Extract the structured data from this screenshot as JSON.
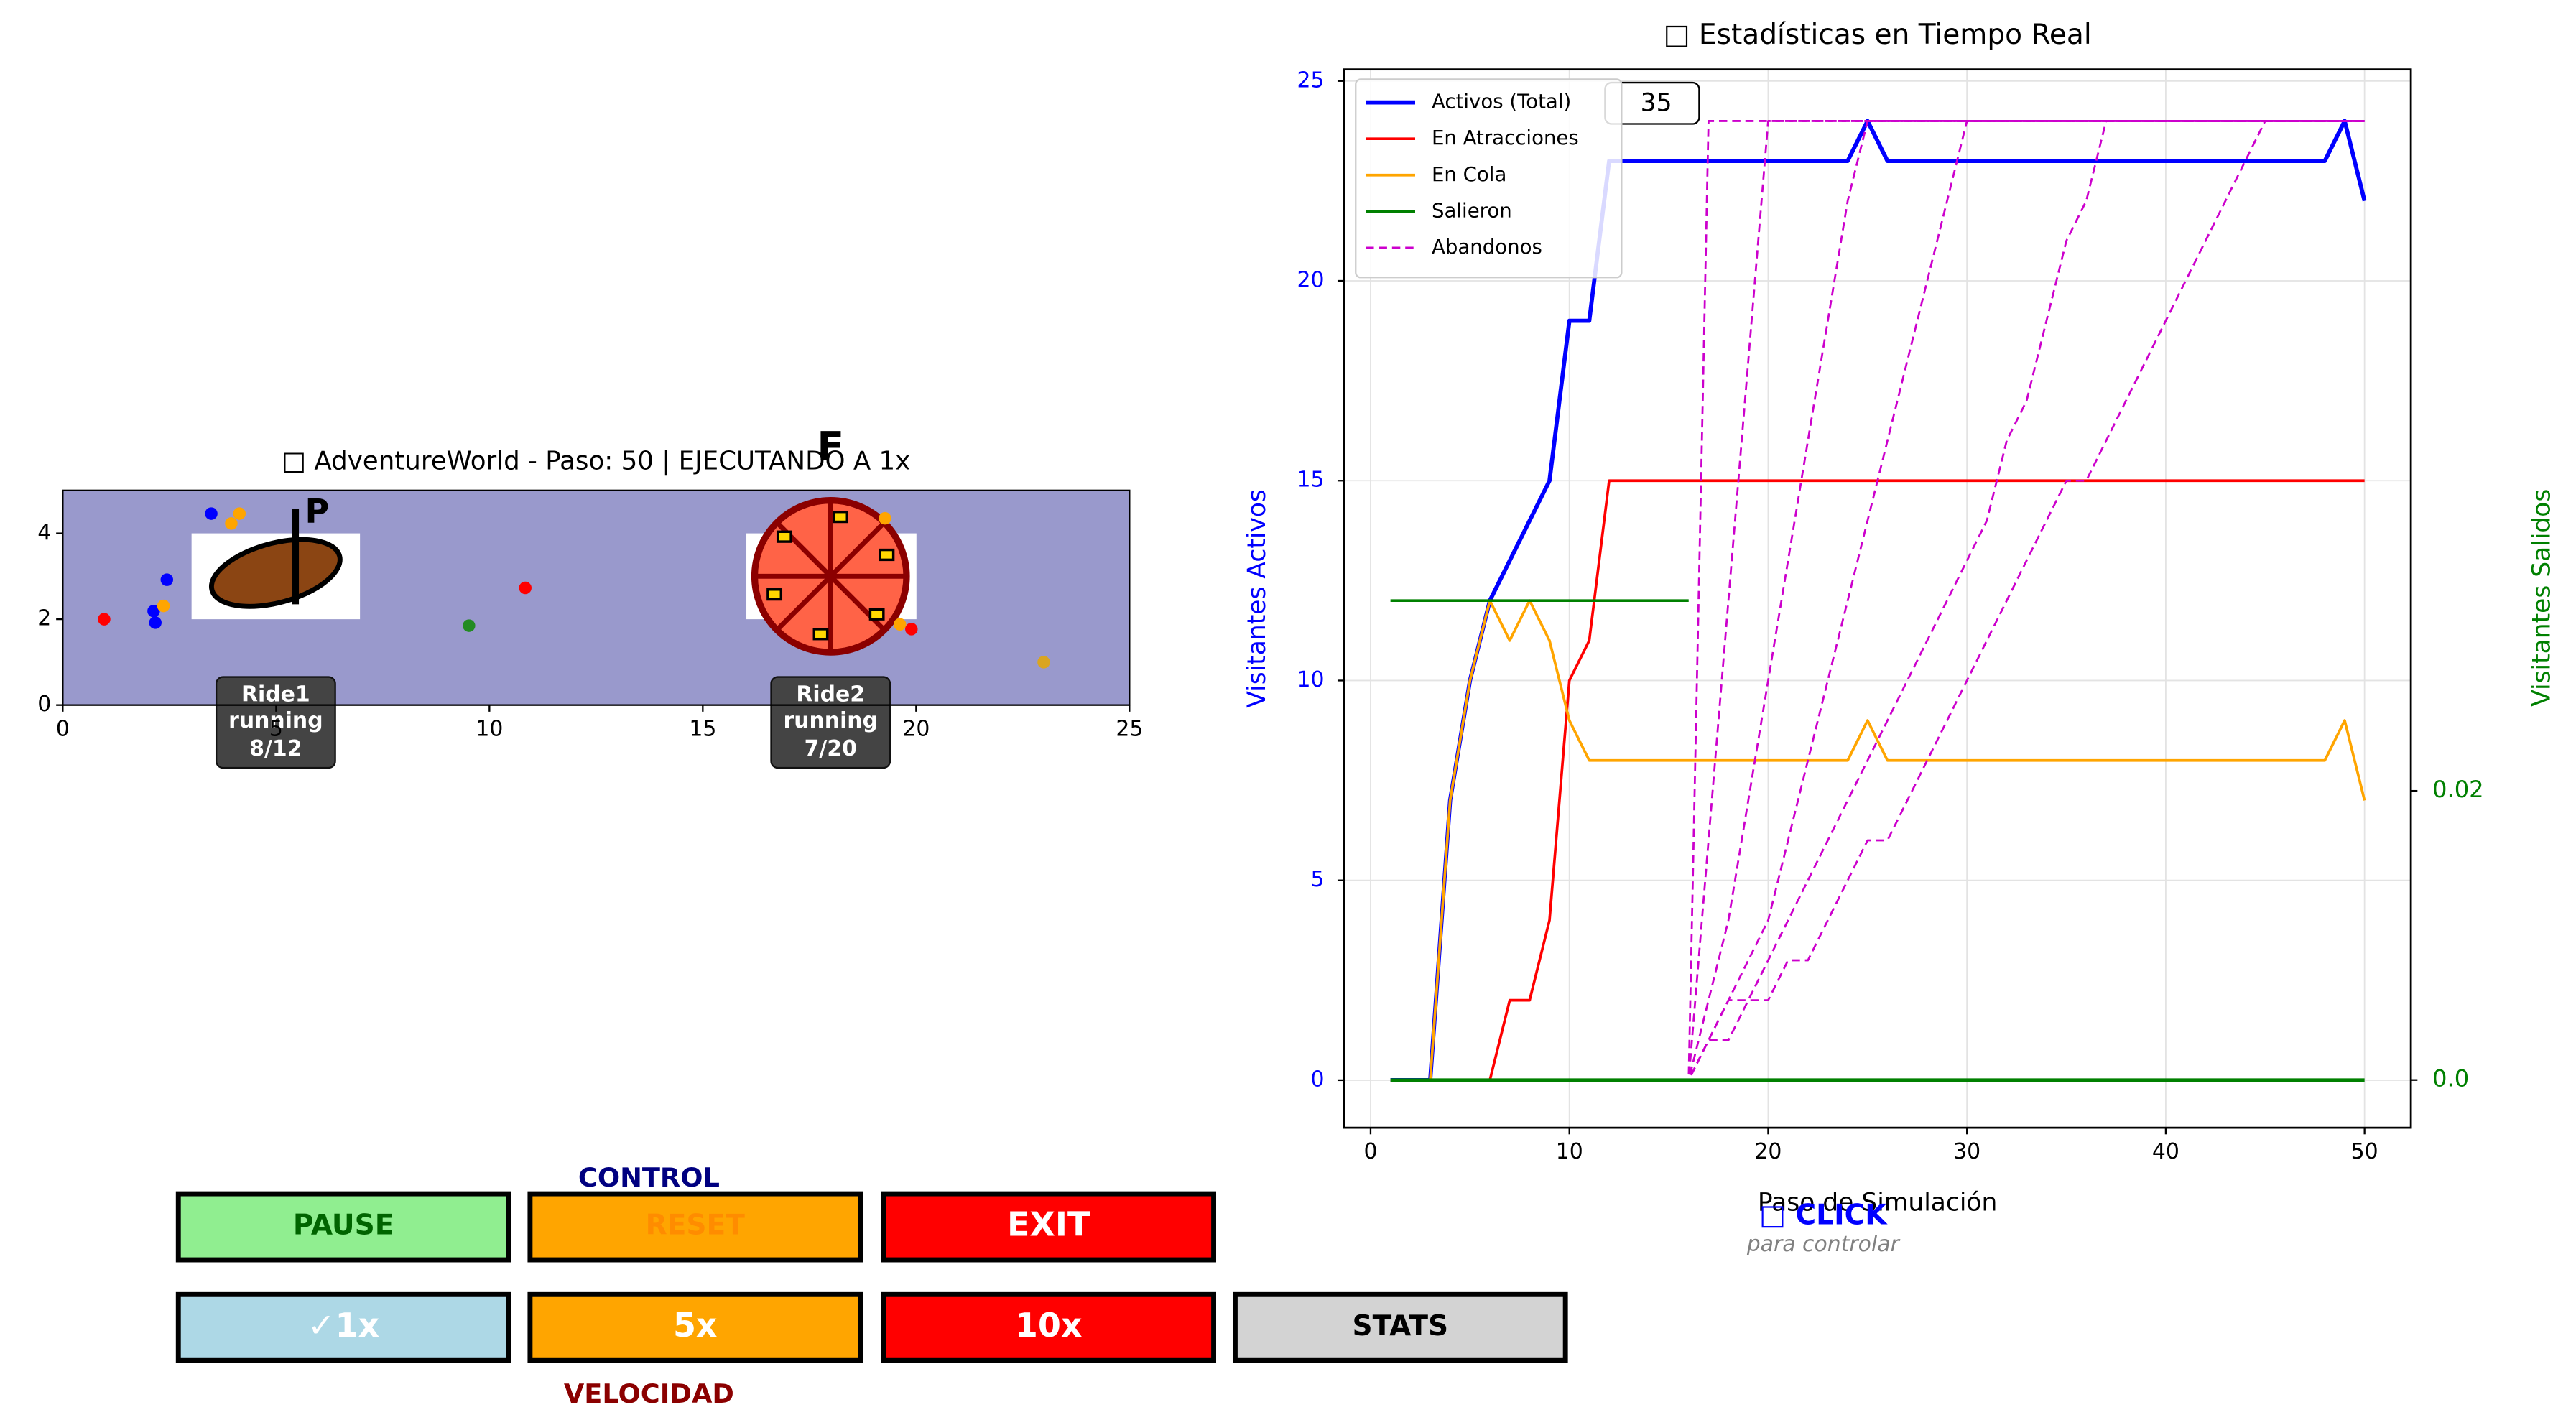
{
  "chart_data": [
    {
      "type": "scatter",
      "title": "□ AdventureWorld - Paso: 50 | EJECUTANDO A 1x",
      "x": [
        3.48,
        4.14,
        3.95,
        2.44,
        0.97,
        2.13,
        2.17,
        2.36,
        9.52,
        10.84,
        19.27,
        19.62,
        19.89,
        22.99
      ],
      "y": [
        4.46,
        4.46,
        4.23,
        2.92,
        2.0,
        2.19,
        1.92,
        2.31,
        1.85,
        2.73,
        4.35,
        1.88,
        1.77,
        1.0
      ],
      "colors": [
        "#0000ff",
        "#ffa500",
        "#ffa500",
        "#0000ff",
        "#ff0000",
        "#0000ff",
        "#0000ff",
        "#ffa500",
        "#228b22",
        "#ff0000",
        "#ffa500",
        "#ffa500",
        "#ff0000",
        "#daa520"
      ],
      "xlim": [
        0,
        25
      ],
      "ylim": [
        0,
        5
      ],
      "xticks": [
        0,
        5,
        10,
        15,
        20,
        25
      ],
      "yticks": [
        0,
        2,
        4
      ],
      "background": "#9999cc",
      "rides": [
        {
          "name": "Ride1",
          "status": "running",
          "load": "8/12",
          "marker": "P"
        },
        {
          "name": "Ride2",
          "status": "running",
          "load": "7/20",
          "marker": "F"
        }
      ]
    },
    {
      "type": "line",
      "title": "□ Estadísticas en Tiempo Real",
      "xlabel": "Paso de Simulación",
      "ylabel": "Visitantes Activos",
      "y2label": "Visitantes Salidos",
      "annotation": "35",
      "legend": "upper left",
      "grid": true,
      "x": [
        1,
        2,
        3,
        4,
        5,
        6,
        7,
        8,
        9,
        10,
        11,
        12,
        13,
        14,
        15,
        16,
        17,
        18,
        19,
        20,
        21,
        22,
        23,
        24,
        25,
        26,
        27,
        28,
        29,
        30,
        31,
        32,
        33,
        34,
        35,
        36,
        37,
        38,
        39,
        40,
        41,
        42,
        43,
        44,
        45,
        46,
        47,
        48,
        49,
        50
      ],
      "xlim": [
        -1.33,
        52.33
      ],
      "ylim": [
        -1.19,
        25.29
      ],
      "y2lim": [
        -0.0033,
        0.0699
      ],
      "xticks": [
        0,
        10,
        20,
        30,
        40,
        50
      ],
      "yticks": [
        0,
        5,
        10,
        15,
        20,
        25
      ],
      "y2ticks": [
        {
          "value": 0,
          "label": "0.0"
        },
        0.02
      ],
      "series": [
        {
          "name": "Activos (Total)",
          "color": "#0000ff",
          "width": 2.5,
          "values": [
            0,
            0,
            0,
            7,
            10,
            12,
            13,
            14,
            15,
            19,
            19,
            23,
            23,
            23,
            23,
            23,
            23,
            23,
            23,
            23,
            23,
            23,
            23,
            23,
            24,
            23,
            23,
            23,
            23,
            23,
            23,
            23,
            23,
            23,
            23,
            23,
            23,
            23,
            23,
            23,
            23,
            23,
            23,
            23,
            23,
            23,
            23,
            23,
            24,
            22
          ]
        },
        {
          "name": "En Atracciones",
          "color": "#ff0000",
          "width": 1.6,
          "values": [
            0,
            0,
            0,
            0,
            0,
            0,
            2,
            2,
            4,
            10,
            11,
            15,
            15,
            15,
            15,
            15,
            15,
            15,
            15,
            15,
            15,
            15,
            15,
            15,
            15,
            15,
            15,
            15,
            15,
            15,
            15,
            15,
            15,
            15,
            15,
            15,
            15,
            15,
            15,
            15,
            15,
            15,
            15,
            15,
            15,
            15,
            15,
            15,
            15,
            15
          ]
        },
        {
          "name": "En Cola",
          "color": "#ffa500",
          "width": 1.6,
          "values": [
            0,
            0,
            0,
            7,
            10,
            12,
            11,
            12,
            11,
            9,
            8,
            8,
            8,
            8,
            8,
            8,
            8,
            8,
            8,
            8,
            8,
            8,
            8,
            8,
            9,
            8,
            8,
            8,
            8,
            8,
            8,
            8,
            8,
            8,
            8,
            8,
            8,
            8,
            8,
            8,
            8,
            8,
            8,
            8,
            8,
            8,
            8,
            8,
            9,
            7
          ]
        },
        {
          "name": "Salieron",
          "color": "#008000",
          "width": 1.6,
          "values": [
            12,
            12,
            12,
            12,
            12,
            12,
            12,
            12,
            12,
            12,
            12,
            12,
            12,
            12,
            12,
            12,
            null,
            null,
            null,
            null,
            null,
            null,
            null,
            null,
            null,
            null,
            null,
            null,
            null,
            null,
            null,
            null,
            null,
            null,
            null,
            null,
            null,
            null,
            null,
            null,
            null,
            null,
            null,
            null,
            null,
            null,
            null,
            null,
            null,
            null
          ]
        },
        {
          "name": "Abandonos",
          "color": "#cc00cc",
          "width": 1.2,
          "dashed": true,
          "values": [
            0,
            0,
            0,
            0,
            0,
            0,
            0,
            0,
            0,
            0,
            0,
            0,
            0,
            0,
            0,
            0,
            24,
            24,
            24,
            24,
            24,
            24,
            24,
            24,
            24,
            24,
            24,
            24,
            24,
            24,
            24,
            24,
            24,
            24,
            24,
            24,
            24,
            24,
            24,
            24,
            24,
            24,
            24,
            24,
            24,
            24,
            24,
            24,
            24,
            24
          ]
        },
        {
          "color": "#cc00cc",
          "width": 1.2,
          "dashed": true,
          "values": [
            0,
            0,
            0,
            0,
            0,
            0,
            0,
            0,
            0,
            0,
            0,
            0,
            0,
            0,
            0,
            0,
            6,
            12,
            18,
            24,
            24,
            24,
            24,
            24,
            24,
            24,
            24,
            24,
            24,
            24,
            24,
            24,
            24,
            24,
            24,
            24,
            24,
            24,
            24,
            24,
            24,
            24,
            24,
            24,
            24,
            24,
            24,
            24,
            24,
            24
          ]
        },
        {
          "color": "#cc00cc",
          "width": 1.2,
          "dashed": true,
          "values": [
            0,
            0,
            0,
            0,
            0,
            0,
            0,
            0,
            0,
            0,
            0,
            0,
            0,
            0,
            0,
            0,
            2,
            4,
            7,
            10,
            13,
            16,
            19,
            22,
            24,
            24,
            24,
            24,
            24,
            24,
            24,
            24,
            24,
            24,
            24,
            24,
            24,
            24,
            24,
            24,
            24,
            24,
            24,
            24,
            24,
            24,
            24,
            24,
            24,
            24
          ]
        },
        {
          "color": "#cc00cc",
          "width": 1.2,
          "dashed": true,
          "values": [
            0,
            0,
            0,
            0,
            0,
            0,
            0,
            0,
            0,
            0,
            0,
            0,
            0,
            0,
            0,
            0,
            1,
            2,
            3,
            4,
            6,
            8,
            10,
            12,
            14,
            16,
            18,
            20,
            22,
            24,
            24,
            24,
            24,
            24,
            24,
            24,
            24,
            24,
            24,
            24,
            24,
            24,
            24,
            24,
            24,
            24,
            24,
            24,
            24,
            24
          ]
        },
        {
          "color": "#cc00cc",
          "width": 1.2,
          "dashed": true,
          "values": [
            0,
            0,
            0,
            0,
            0,
            0,
            0,
            0,
            0,
            0,
            0,
            0,
            0,
            0,
            0,
            0,
            1,
            2,
            2,
            3,
            4,
            5,
            6,
            7,
            8,
            9,
            10,
            11,
            12,
            13,
            14,
            16,
            17,
            19,
            21,
            22,
            24,
            24,
            24,
            24,
            24,
            24,
            24,
            24,
            24,
            24,
            24,
            24,
            24,
            24
          ]
        },
        {
          "color": "#cc00cc",
          "width": 1.2,
          "dashed": true,
          "values": [
            0,
            0,
            0,
            0,
            0,
            0,
            0,
            0,
            0,
            0,
            0,
            0,
            0,
            0,
            0,
            0,
            1,
            1,
            2,
            2,
            3,
            3,
            4,
            5,
            6,
            6,
            7,
            8,
            9,
            10,
            11,
            12,
            13,
            14,
            15,
            15,
            16,
            17,
            18,
            19,
            20,
            21,
            22,
            23,
            24,
            24,
            24,
            24,
            24,
            24
          ]
        },
        {
          "color": "#008000",
          "width": 2,
          "axis": "y2",
          "values": [
            0,
            0,
            0,
            0,
            0,
            0,
            0,
            0,
            0,
            0,
            0,
            0,
            0,
            0,
            0,
            0,
            0,
            0,
            0,
            0,
            0,
            0,
            0,
            0,
            0,
            0,
            0,
            0,
            0,
            0,
            0,
            0,
            0,
            0,
            0,
            0,
            0,
            0,
            0,
            0,
            0,
            0,
            0,
            0,
            0,
            0,
            0,
            0,
            0,
            0
          ]
        }
      ]
    }
  ],
  "controls": {
    "title": "CONTROL",
    "buttons": [
      "PAUSE",
      "RESET",
      "EXIT"
    ]
  },
  "speed": {
    "title": "VELOCIDAD",
    "buttons": [
      "✓1x",
      "5x",
      "10x",
      "STATS"
    ]
  },
  "hint": {
    "title": "□ CLICK",
    "subtitle": "para controlar"
  }
}
